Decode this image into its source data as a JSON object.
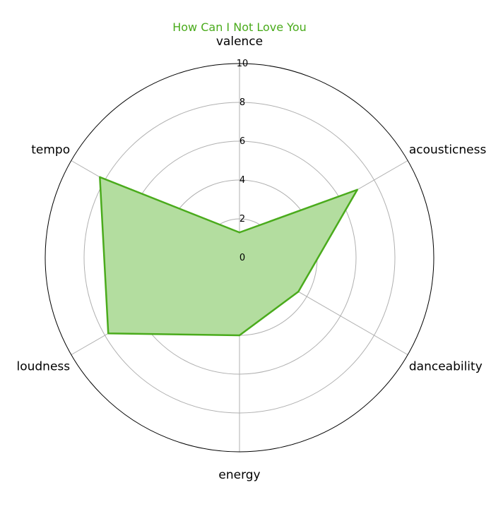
{
  "chart_data": {
    "type": "radar",
    "title": "How Can I Not Love You",
    "axes": [
      "valence",
      "acousticness",
      "danceability",
      "energy",
      "loudness",
      "tempo"
    ],
    "values": [
      1.3,
      7.0,
      3.5,
      4.0,
      7.8,
      8.3
    ],
    "rlim": [
      0,
      10
    ],
    "rticks": [
      "0",
      "2",
      "4",
      "6",
      "8",
      "10"
    ],
    "grid": true,
    "colors": {
      "title": "#4aab1c",
      "line": "#4aab1c",
      "fill": "#b3dd9f",
      "grid": "#b0b0b0",
      "frame": "#000000"
    }
  }
}
